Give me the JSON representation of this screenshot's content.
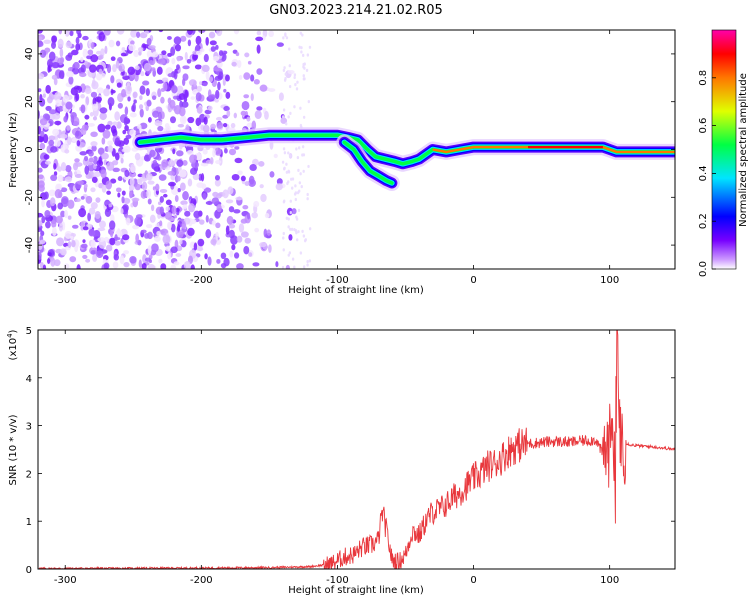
{
  "title": "GN03.2023.214.21.02.R05",
  "chart_data": [
    {
      "type": "heatmap",
      "xlabel": "Height of straight line (km)",
      "ylabel": "Frequency (Hz)",
      "xlim": [
        -320,
        148
      ],
      "ylim": [
        -50,
        50
      ],
      "xticks": [
        -300,
        -200,
        -100,
        0,
        100
      ],
      "xtick_labels": [
        "-300",
        "-200",
        "-100",
        "0",
        "100"
      ],
      "yticks": [
        -40,
        -20,
        0,
        20,
        40
      ],
      "ytick_labels": [
        "-40",
        "-20",
        "0",
        "20",
        "40"
      ],
      "colorbar": {
        "label": "Normalized spectral amplitude",
        "range": [
          0,
          1
        ],
        "ticks": [
          0.0,
          0.2,
          0.4,
          0.6,
          0.8
        ],
        "tick_labels": [
          "0.0",
          "0.2",
          "0.4",
          "0.6",
          "0.8"
        ],
        "colors": [
          "#ffffff",
          "#cc99ff",
          "#7700ff",
          "#0000ff",
          "#00e5ff",
          "#00ff44",
          "#e0ff00",
          "#ff7700",
          "#ff0000",
          "#ff00aa"
        ]
      },
      "ridge": {
        "x": [
          -245,
          -230,
          -215,
          -200,
          -185,
          -150,
          -130,
          -115,
          -100,
          -92,
          -85,
          -78,
          -72,
          -65,
          -58,
          -52,
          -45,
          -40,
          -30,
          -20,
          -10,
          0,
          10,
          20,
          40,
          60,
          80,
          95,
          100,
          105,
          148
        ],
        "y": [
          3,
          4,
          5,
          4,
          4,
          6,
          6,
          6,
          6,
          5,
          4,
          0,
          -3,
          -4,
          -5,
          -6,
          -5,
          -4,
          0,
          -1,
          0,
          1,
          1,
          1,
          1,
          1,
          1,
          1,
          0,
          -1,
          -1
        ]
      },
      "ridge_branch": {
        "x": [
          -95,
          -88,
          -82,
          -76,
          -70,
          -64,
          -60
        ],
        "y": [
          3,
          0,
          -5,
          -9,
          -11,
          -13,
          -14
        ]
      }
    },
    {
      "type": "line",
      "xlabel": "Height of straight line (km)",
      "ylabel": "SNR (10 * v/v)",
      "scale_label": "(x10",
      "scale_exponent": "4",
      "scale_suffix": ")",
      "xlim": [
        -320,
        148
      ],
      "ylim": [
        0,
        5
      ],
      "xticks": [
        -300,
        -200,
        -100,
        0,
        100
      ],
      "xtick_labels": [
        "-300",
        "-200",
        "-100",
        "0",
        "100"
      ],
      "yticks": [
        0,
        1,
        2,
        3,
        4,
        5
      ],
      "ytick_labels": [
        "0",
        "1",
        "2",
        "3",
        "4",
        "5"
      ],
      "color": "#e8373c",
      "x": [
        -320,
        -200,
        -150,
        -120,
        -105,
        -95,
        -88,
        -82,
        -75,
        -70,
        -67,
        -64,
        -60,
        -55,
        -50,
        -45,
        -40,
        -35,
        -30,
        -25,
        -20,
        -15,
        -10,
        -5,
        0,
        5,
        10,
        15,
        20,
        25,
        30,
        35,
        40,
        50,
        60,
        70,
        80,
        90,
        95,
        100,
        102,
        104,
        106,
        107,
        108,
        110,
        115,
        120,
        130,
        140,
        148
      ],
      "y": [
        0.01,
        0.02,
        0.03,
        0.05,
        0.1,
        0.25,
        0.3,
        0.45,
        0.5,
        0.6,
        1.2,
        0.8,
        0.2,
        0.15,
        0.3,
        0.8,
        0.7,
        1.0,
        1.2,
        1.25,
        1.35,
        1.5,
        1.6,
        1.75,
        1.9,
        2.0,
        2.15,
        2.2,
        2.3,
        2.45,
        2.55,
        2.6,
        2.62,
        2.65,
        2.67,
        2.65,
        2.68,
        2.7,
        2.4,
        2.6,
        3.5,
        1.5,
        4.8,
        1.4,
        3.0,
        2.65,
        2.6,
        2.58,
        2.56,
        2.53,
        2.5
      ]
    }
  ]
}
